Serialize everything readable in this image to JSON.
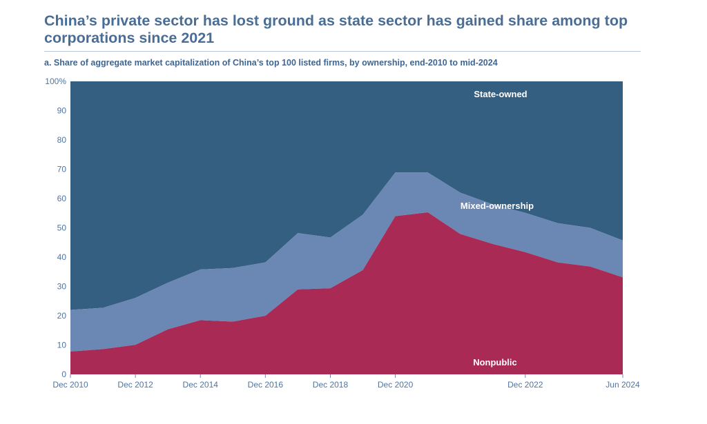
{
  "header": {
    "title": "China’s private sector has lost ground as state sector has gained share among top corporations since 2021",
    "subtitle": "a. Share of aggregate market capitalization of China’s top 100 listed firms, by ownership, end-2010 to mid-2024"
  },
  "chart_data": {
    "type": "area",
    "stacked": true,
    "x": [
      "Dec 2010",
      "Dec 2011",
      "Dec 2012",
      "Dec 2013",
      "Dec 2014",
      "Dec 2015",
      "Dec 2016",
      "Dec 2017",
      "Dec 2018",
      "Dec 2019",
      "Dec 2020",
      "Jun 2021",
      "Dec 2021",
      "Jun 2022",
      "Dec 2022",
      "Jun 2023",
      "Dec 2023",
      "Jun 2024"
    ],
    "x_tick_labels": [
      "Dec 2010",
      "Dec 2012",
      "Dec 2014",
      "Dec 2016",
      "Dec 2018",
      "Dec 2020",
      "Dec 2022",
      "Jun 2024"
    ],
    "y_tick_labels": [
      "0",
      "10",
      "20",
      "30",
      "40",
      "50",
      "60",
      "70",
      "80",
      "90",
      "100%"
    ],
    "ylim": [
      0,
      100
    ],
    "series": [
      {
        "name": "Nonpublic",
        "color": "#a82a55",
        "values": [
          7.8,
          8.6,
          10.1,
          15.4,
          18.5,
          18.0,
          20.0,
          29.0,
          29.4,
          35.6,
          54.0,
          55.3,
          47.9,
          44.5,
          41.7,
          38.2,
          36.8,
          33.1
        ]
      },
      {
        "name": "Mixed-ownership",
        "color": "#6b88b4",
        "values": [
          14.2,
          14.1,
          16.0,
          15.9,
          17.3,
          18.3,
          18.2,
          19.2,
          17.3,
          18.9,
          14.9,
          13.6,
          14.1,
          13.5,
          13.4,
          13.4,
          13.2,
          12.6
        ]
      },
      {
        "name": "State-owned",
        "color": "#345f81",
        "values": [
          78.0,
          77.3,
          73.9,
          68.7,
          64.2,
          63.7,
          61.8,
          51.8,
          53.3,
          45.5,
          31.1,
          31.1,
          38.0,
          42.0,
          44.9,
          48.4,
          50.0,
          54.3
        ]
      }
    ],
    "grid": false,
    "legend": "inline labels"
  }
}
